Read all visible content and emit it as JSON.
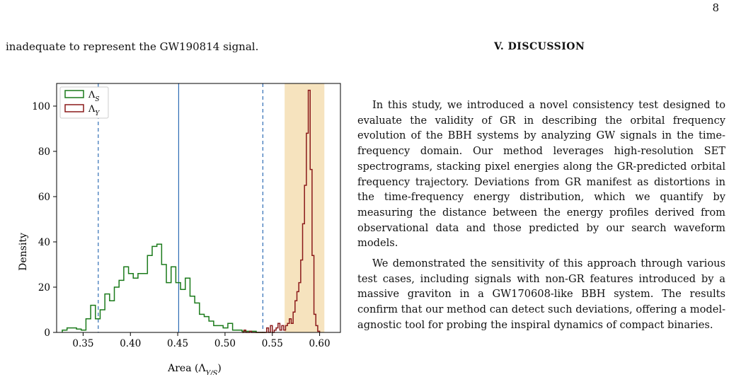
{
  "page": {
    "number": "8"
  },
  "left": {
    "intro_line": "inadequate to represent the GW190814 signal."
  },
  "right": {
    "section_heading": "V.   DISCUSSION",
    "paragraphs": [
      "In this study, we introduced a novel consistency test designed to evaluate the validity of GR in describing the orbital frequency evolution of the BBH systems by analyzing GW signals in the time-frequency domain. Our method leverages high-resolution SET spectrograms, stacking pixel energies along the GR-predicted orbital frequency trajectory. Deviations from GR manifest as distortions in the time-frequency energy distribution, which we quantify by measuring the distance between the energy profiles derived from observational data and those predicted by our search waveform models.",
      "We demonstrated the sensitivity of this approach through various test cases, including signals with non-GR features introduced by a massive graviton in a GW170608-like BBH system. The results confirm that our method can detect such deviations, offering a model-agnostic tool for probing the inspiral dynamics of compact binaries."
    ]
  },
  "chart_data": {
    "type": "histogram",
    "xlabel": "Area (Λ_{Y/S})",
    "ylabel": "Density",
    "xlim": [
      0.322,
      0.622
    ],
    "ylim": [
      0,
      110
    ],
    "xticks": [
      0.35,
      0.4,
      0.45,
      0.5,
      0.55,
      0.6
    ],
    "yticks": [
      0,
      20,
      40,
      60,
      80,
      100
    ],
    "xtick_labels": [
      "0.35",
      "0.40",
      "0.45",
      "0.50",
      "0.55",
      "0.60"
    ],
    "ytick_labels": [
      "0",
      "20",
      "40",
      "60",
      "80",
      "100"
    ],
    "legend_position": "top-left",
    "grid": false,
    "series": [
      {
        "name": "Λ_S",
        "color": "#1a7a1a",
        "bin_width": 0.005,
        "bin_start": 0.328,
        "values": [
          1,
          2,
          2,
          1.5,
          1,
          6,
          12,
          6,
          10,
          17,
          14,
          20,
          23,
          29,
          26,
          24,
          26,
          26,
          34,
          38,
          39,
          30,
          22,
          29,
          22,
          19,
          24,
          16,
          13,
          8,
          7,
          5,
          3,
          3,
          2,
          4,
          1,
          1,
          0.5,
          0.5,
          0.5,
          0,
          0
        ]
      },
      {
        "name": "Λ_Y",
        "color": "#8b1a1a",
        "bin_width": 0.002,
        "bin_start": 0.518,
        "values": [
          0,
          1,
          0,
          0,
          0.5,
          0,
          0,
          0,
          0,
          0,
          0,
          0,
          0,
          2,
          0,
          3,
          0,
          1,
          2,
          4,
          1,
          3,
          1,
          3,
          4,
          6,
          4,
          9,
          14,
          18,
          22,
          32,
          48,
          65,
          88,
          107,
          72,
          34,
          8,
          3,
          0.5
        ]
      }
    ],
    "vlines": [
      {
        "x": 0.366,
        "style": "dashed",
        "color": "#2f6db5"
      },
      {
        "x": 0.451,
        "style": "solid",
        "color": "#2f6db5"
      },
      {
        "x": 0.54,
        "style": "dashed",
        "color": "#2f6db5"
      }
    ],
    "shaded_region": {
      "x_range": [
        0.563,
        0.605
      ],
      "color": "#f5deb3"
    }
  }
}
